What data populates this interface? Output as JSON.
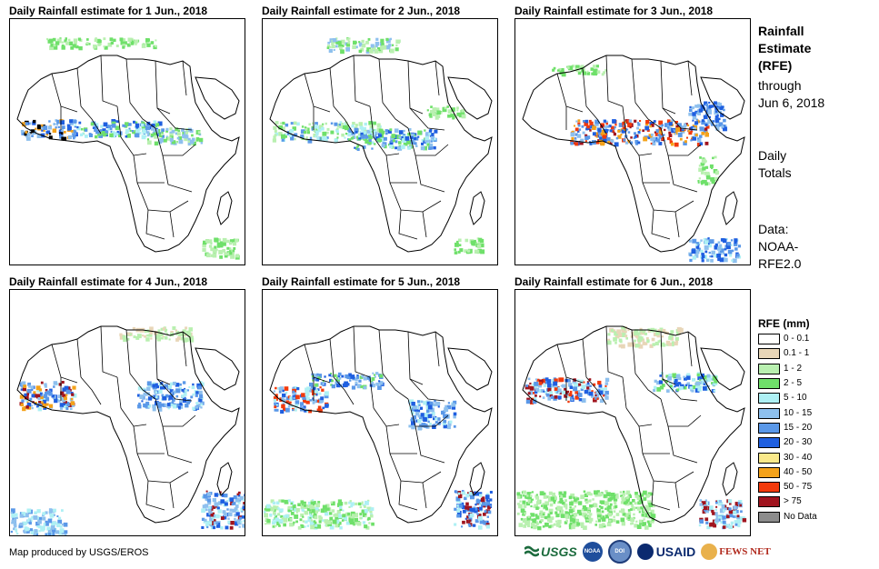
{
  "panels": [
    {
      "title": "Daily Rainfall estimate for 1 Jun., 2018",
      "day": 1
    },
    {
      "title": "Daily Rainfall estimate for 2 Jun., 2018",
      "day": 2
    },
    {
      "title": "Daily Rainfall estimate for 3 Jun., 2018",
      "day": 3
    },
    {
      "title": "Daily Rainfall estimate for 4 Jun., 2018",
      "day": 4
    },
    {
      "title": "Daily Rainfall estimate for 5 Jun., 2018",
      "day": 5
    },
    {
      "title": "Daily Rainfall estimate for 6 Jun., 2018",
      "day": 6
    }
  ],
  "side": {
    "title_lines": [
      "Rainfall",
      "Estimate",
      "(RFE)"
    ],
    "through_lines": [
      "through",
      "Jun 6, 2018"
    ],
    "daily_lines": [
      "Daily",
      "Totals"
    ],
    "data_lines": [
      "Data:",
      "NOAA-",
      "RFE2.0"
    ]
  },
  "legend": {
    "title": "RFE (mm)",
    "items": [
      {
        "label": "0 - 0.1",
        "color": "#ffffff"
      },
      {
        "label": "0.1 - 1",
        "color": "#e8d6b8"
      },
      {
        "label": "1 - 2",
        "color": "#b9f0b0"
      },
      {
        "label": "2 - 5",
        "color": "#6fe06a"
      },
      {
        "label": "5 - 10",
        "color": "#aef0f4"
      },
      {
        "label": "10 - 15",
        "color": "#8ec0ee"
      },
      {
        "label": "15 - 20",
        "color": "#5a98e8"
      },
      {
        "label": "20 - 30",
        "color": "#1f5fe0"
      },
      {
        "label": "30 - 40",
        "color": "#fae98a"
      },
      {
        "label": "40 - 50",
        "color": "#f4a21a"
      },
      {
        "label": "50 - 75",
        "color": "#f23a0c"
      },
      {
        "label": "> 75",
        "color": "#a0141e"
      },
      {
        "label": "No Data",
        "color": "#8c8c8c"
      }
    ]
  },
  "credit": "Map produced by USGS/EROS",
  "logos": {
    "usgs": "USGS",
    "noaa": "NOAA",
    "doi": "DOI",
    "usaid": "USAID",
    "fews": "FEWS NET"
  }
}
